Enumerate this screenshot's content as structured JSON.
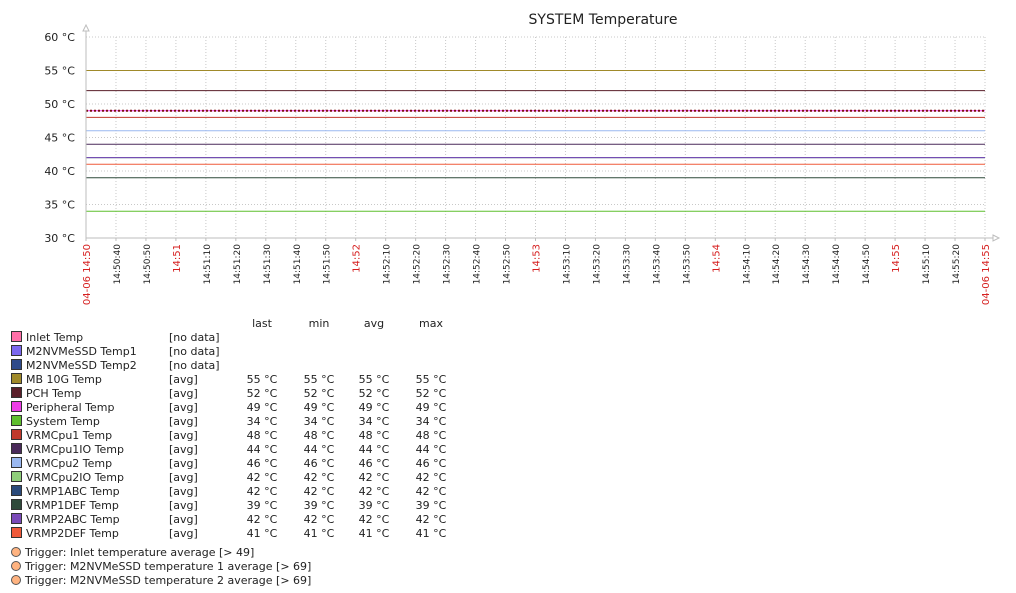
{
  "chart_data": {
    "type": "line",
    "title": "SYSTEM Temperature",
    "ylim": [
      30,
      60
    ],
    "y_unit": "°C",
    "y_ticks": [
      {
        "value": 30,
        "label": "30 °C"
      },
      {
        "value": 35,
        "label": "35 °C"
      },
      {
        "value": 40,
        "label": "40 °C"
      },
      {
        "value": 45,
        "label": "45 °C"
      },
      {
        "value": 50,
        "label": "50 °C"
      },
      {
        "value": 55,
        "label": "55 °C"
      },
      {
        "value": 60,
        "label": "60 °C"
      }
    ],
    "x_range_seconds": [
      0,
      300
    ],
    "x_ticks": [
      {
        "t": 0,
        "label": "04-06 14:50",
        "major": true
      },
      {
        "t": 10,
        "label": "14:50:40",
        "major": false
      },
      {
        "t": 20,
        "label": "14:50:50",
        "major": false
      },
      {
        "t": 30,
        "label": "14:51",
        "major": true
      },
      {
        "t": 40,
        "label": "14:51:10",
        "major": false
      },
      {
        "t": 50,
        "label": "14:51:20",
        "major": false
      },
      {
        "t": 60,
        "label": "14:51:30",
        "major": false
      },
      {
        "t": 70,
        "label": "14:51:40",
        "major": false
      },
      {
        "t": 80,
        "label": "14:51:50",
        "major": false
      },
      {
        "t": 90,
        "label": "14:52",
        "major": true
      },
      {
        "t": 100,
        "label": "14:52:10",
        "major": false
      },
      {
        "t": 110,
        "label": "14:52:20",
        "major": false
      },
      {
        "t": 120,
        "label": "14:52:30",
        "major": false
      },
      {
        "t": 130,
        "label": "14:52:40",
        "major": false
      },
      {
        "t": 140,
        "label": "14:52:50",
        "major": false
      },
      {
        "t": 150,
        "label": "14:53",
        "major": true
      },
      {
        "t": 160,
        "label": "14:53:10",
        "major": false
      },
      {
        "t": 170,
        "label": "14:53:20",
        "major": false
      },
      {
        "t": 180,
        "label": "14:53:30",
        "major": false
      },
      {
        "t": 190,
        "label": "14:53:40",
        "major": false
      },
      {
        "t": 200,
        "label": "14:53:50",
        "major": false
      },
      {
        "t": 210,
        "label": "14:54",
        "major": true
      },
      {
        "t": 220,
        "label": "14:54:10",
        "major": false
      },
      {
        "t": 230,
        "label": "14:54:20",
        "major": false
      },
      {
        "t": 240,
        "label": "14:54:30",
        "major": false
      },
      {
        "t": 250,
        "label": "14:54:40",
        "major": false
      },
      {
        "t": 260,
        "label": "14:54:50",
        "major": false
      },
      {
        "t": 270,
        "label": "14:55",
        "major": true
      },
      {
        "t": 280,
        "label": "14:55:10",
        "major": false
      },
      {
        "t": 290,
        "label": "14:55:20",
        "major": false
      },
      {
        "t": 300,
        "label": "04-06 14:55",
        "major": true
      }
    ],
    "legend_headers": [
      "last",
      "min",
      "avg",
      "max"
    ],
    "series": [
      {
        "name": "Inlet Temp",
        "color": "#ff6fa8",
        "func": "[no data]",
        "value": null,
        "last": "",
        "min": "",
        "avg": "",
        "max": ""
      },
      {
        "name": "M2NVMeSSD Temp1",
        "color": "#7b68ee",
        "func": "[no data]",
        "value": null,
        "last": "",
        "min": "",
        "avg": "",
        "max": ""
      },
      {
        "name": "M2NVMeSSD Temp2",
        "color": "#2e4a8a",
        "func": "[no data]",
        "value": null,
        "last": "",
        "min": "",
        "avg": "",
        "max": ""
      },
      {
        "name": "MB 10G Temp",
        "color": "#a08a2a",
        "func": "[avg]",
        "value": 55,
        "last": "55 °C",
        "min": "55 °C",
        "avg": "55 °C",
        "max": "55 °C"
      },
      {
        "name": "PCH Temp",
        "color": "#5a1f2a",
        "func": "[avg]",
        "value": 52,
        "last": "52 °C",
        "min": "52 °C",
        "avg": "52 °C",
        "max": "52 °C"
      },
      {
        "name": "Peripheral Temp",
        "color": "#ee3ee8",
        "func": "[avg]",
        "value": 49,
        "last": "49 °C",
        "min": "49 °C",
        "avg": "49 °C",
        "max": "49 °C"
      },
      {
        "name": "System Temp",
        "color": "#5fbf2f",
        "func": "[avg]",
        "value": 34,
        "last": "34 °C",
        "min": "34 °C",
        "avg": "34 °C",
        "max": "34 °C"
      },
      {
        "name": "VRMCpu1 Temp",
        "color": "#c0392b",
        "func": "[avg]",
        "value": 48,
        "last": "48 °C",
        "min": "48 °C",
        "avg": "48 °C",
        "max": "48 °C"
      },
      {
        "name": "VRMCpu1IO Temp",
        "color": "#4a2a5a",
        "func": "[avg]",
        "value": 44,
        "last": "44 °C",
        "min": "44 °C",
        "avg": "44 °C",
        "max": "44 °C"
      },
      {
        "name": "VRMCpu2 Temp",
        "color": "#9ab8f0",
        "func": "[avg]",
        "value": 46,
        "last": "46 °C",
        "min": "46 °C",
        "avg": "46 °C",
        "max": "46 °C"
      },
      {
        "name": "VRMCpu2IO Temp",
        "color": "#8fcf7a",
        "func": "[avg]",
        "value": 42,
        "last": "42 °C",
        "min": "42 °C",
        "avg": "42 °C",
        "max": "42 °C"
      },
      {
        "name": "VRMP1ABC Temp",
        "color": "#2a4a7a",
        "func": "[avg]",
        "value": 42,
        "last": "42 °C",
        "min": "42 °C",
        "avg": "42 °C",
        "max": "42 °C"
      },
      {
        "name": "VRMP1DEF Temp",
        "color": "#2f4a3a",
        "func": "[avg]",
        "value": 39,
        "last": "39 °C",
        "min": "39 °C",
        "avg": "39 °C",
        "max": "39 °C"
      },
      {
        "name": "VRMP2ABC Temp",
        "color": "#7a4ab8",
        "func": "[avg]",
        "value": 42,
        "last": "42 °C",
        "min": "42 °C",
        "avg": "42 °C",
        "max": "42 °C"
      },
      {
        "name": "VRMP2DEF Temp",
        "color": "#ef5a3a",
        "func": "[avg]",
        "value": 41,
        "last": "41 °C",
        "min": "41 °C",
        "avg": "41 °C",
        "max": "41 °C"
      }
    ],
    "triggers": [
      {
        "label": "Trigger: Inlet temperature average  [> 49]",
        "value": 49,
        "color": "#ffb380"
      },
      {
        "label": "Trigger: M2NVMeSSD temperature 1 average  [> 69]",
        "value": 69,
        "color": "#ffb380"
      },
      {
        "label": "Trigger: M2NVMeSSD temperature 2 average  [> 69]",
        "value": 69,
        "color": "#ffb380"
      }
    ],
    "colors": {
      "grid": "#c8c8c8",
      "axis": "#bdbdbd",
      "major_label": "#d62020",
      "label": "#222222",
      "trigger_line": "#7a1010"
    }
  }
}
